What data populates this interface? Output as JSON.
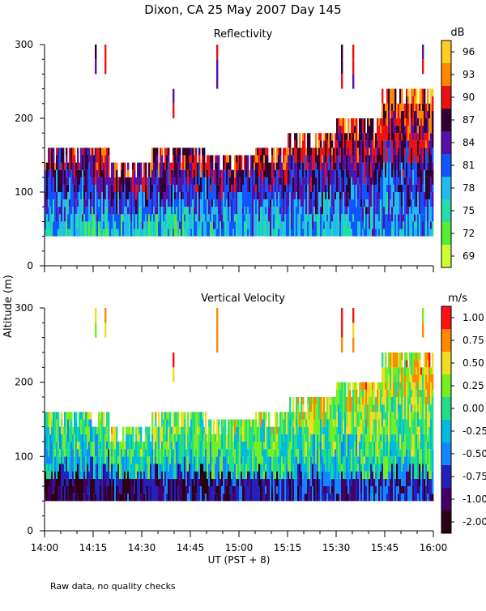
{
  "title": "Dixon, CA 25 May 2007  Day 145",
  "ylabel": "Altitude  (m)",
  "xlabel": "UT  (PST + 8)",
  "footnote": "Raw data, no quality checks",
  "chart_data": [
    {
      "type": "heatmap",
      "title": "Reflectivity",
      "units": "dB",
      "ylim": [
        0,
        300
      ],
      "yticks": [
        "0",
        "100",
        "200",
        "300"
      ],
      "xlim": [
        0,
        120
      ],
      "xticks": [
        "14:00",
        "14:15",
        "14:30",
        "14:45",
        "15:00",
        "15:15",
        "15:30",
        "15:45",
        "16:00"
      ],
      "colorbar": {
        "labels": [
          "69",
          "72",
          "75",
          "78",
          "81",
          "84",
          "87",
          "90",
          "93",
          "96"
        ],
        "colors": [
          "#ccff33",
          "#55ee33",
          "#22ddaa",
          "#22bbee",
          "#1155ff",
          "#5511aa",
          "#300033",
          "#ee1111",
          "#ff8800",
          "#ffcc22"
        ]
      },
      "regions": [
        {
          "t0": 0,
          "t1": 5,
          "bottom": 40,
          "top": 160
        },
        {
          "t0": 5,
          "t1": 20,
          "bottom": 40,
          "top": 160
        },
        {
          "t0": 20,
          "t1": 33,
          "bottom": 40,
          "top": 140
        },
        {
          "t0": 33,
          "t1": 50,
          "bottom": 40,
          "top": 160
        },
        {
          "t0": 50,
          "t1": 65,
          "bottom": 40,
          "top": 150
        },
        {
          "t0": 65,
          "t1": 75,
          "bottom": 40,
          "top": 160
        },
        {
          "t0": 75,
          "t1": 90,
          "bottom": 40,
          "top": 180
        },
        {
          "t0": 90,
          "t1": 104,
          "bottom": 40,
          "top": 200
        },
        {
          "t0": 104,
          "t1": 120,
          "bottom": 40,
          "top": 240
        }
      ],
      "isolated": [
        {
          "t": 15.5,
          "bottom": 260,
          "top": 300
        },
        {
          "t": 18.5,
          "bottom": 260,
          "top": 300
        },
        {
          "t": 39.5,
          "bottom": 200,
          "top": 240
        },
        {
          "t": 53.0,
          "bottom": 240,
          "top": 300
        },
        {
          "t": 91.5,
          "bottom": 240,
          "top": 300
        },
        {
          "t": 95.0,
          "bottom": 240,
          "top": 300
        },
        {
          "t": 116.5,
          "bottom": 260,
          "top": 300
        }
      ]
    },
    {
      "type": "heatmap",
      "title": "Vertical Velocity",
      "units": "m/s",
      "ylim": [
        0,
        300
      ],
      "yticks": [
        "0",
        "100",
        "200",
        "300"
      ],
      "xlim": [
        0,
        120
      ],
      "xticks": [
        "14:00",
        "14:15",
        "14:30",
        "14:45",
        "15:00",
        "15:15",
        "15:30",
        "15:45",
        "16:00"
      ],
      "colorbar": {
        "labels": [
          "-2.00",
          "-1.00",
          "-0.75",
          "-0.50",
          "-0.25",
          "0.00",
          "0.25",
          "0.50",
          "0.75",
          "1.00"
        ],
        "colors": [
          "#2a0015",
          "#440066",
          "#2222bb",
          "#1188ff",
          "#00bbdd",
          "#22dd88",
          "#77ee22",
          "#eedd22",
          "#ff8800",
          "#ff1111"
        ]
      },
      "regions": [
        {
          "t0": 0,
          "t1": 5,
          "bottom": 40,
          "top": 160
        },
        {
          "t0": 5,
          "t1": 20,
          "bottom": 40,
          "top": 160
        },
        {
          "t0": 20,
          "t1": 33,
          "bottom": 40,
          "top": 140
        },
        {
          "t0": 33,
          "t1": 50,
          "bottom": 40,
          "top": 160
        },
        {
          "t0": 50,
          "t1": 65,
          "bottom": 40,
          "top": 150
        },
        {
          "t0": 65,
          "t1": 75,
          "bottom": 40,
          "top": 160
        },
        {
          "t0": 75,
          "t1": 90,
          "bottom": 40,
          "top": 180
        },
        {
          "t0": 90,
          "t1": 104,
          "bottom": 40,
          "top": 200
        },
        {
          "t0": 104,
          "t1": 120,
          "bottom": 40,
          "top": 240
        }
      ],
      "isolated": [
        {
          "t": 15.5,
          "bottom": 260,
          "top": 300
        },
        {
          "t": 18.5,
          "bottom": 260,
          "top": 300
        },
        {
          "t": 39.5,
          "bottom": 200,
          "top": 240
        },
        {
          "t": 53.0,
          "bottom": 240,
          "top": 300
        },
        {
          "t": 91.5,
          "bottom": 240,
          "top": 300
        },
        {
          "t": 95.0,
          "bottom": 240,
          "top": 300
        },
        {
          "t": 116.5,
          "bottom": 260,
          "top": 300
        }
      ]
    }
  ]
}
